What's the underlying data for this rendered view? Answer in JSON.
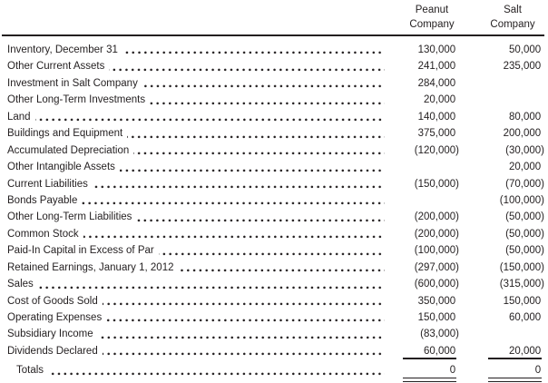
{
  "ink_color": "#231f20",
  "header": {
    "peanut": {
      "line1": "Peanut",
      "line2": "Company"
    },
    "salt": {
      "line1": "Salt",
      "line2": "Company"
    }
  },
  "rows": [
    {
      "label": "Inventory, December 31",
      "peanut": "130,000",
      "salt": "50,000"
    },
    {
      "label": "Other Current Assets",
      "peanut": "241,000",
      "salt": "235,000"
    },
    {
      "label": "Investment in Salt Company",
      "peanut": "284,000",
      "salt": ""
    },
    {
      "label": "Other Long-Term Investments",
      "peanut": "20,000",
      "salt": ""
    },
    {
      "label": "Land",
      "peanut": "140,000",
      "salt": "80,000"
    },
    {
      "label": "Buildings and Equipment",
      "peanut": "375,000",
      "salt": "200,000"
    },
    {
      "label": "Accumulated Depreciation",
      "peanut": "(120,000)",
      "salt": "(30,000)"
    },
    {
      "label": "Other Intangible Assets",
      "peanut": "",
      "salt": "20,000"
    },
    {
      "label": "Current Liabilities",
      "peanut": "(150,000)",
      "salt": "(70,000)"
    },
    {
      "label": "Bonds Payable",
      "peanut": "",
      "salt": "(100,000)"
    },
    {
      "label": "Other Long-Term Liabilities",
      "peanut": "(200,000)",
      "salt": "(50,000)"
    },
    {
      "label": "Common Stock",
      "peanut": "(200,000)",
      "salt": "(50,000)"
    },
    {
      "label": "Paid-In Capital in Excess of Par",
      "peanut": "(100,000)",
      "salt": "(50,000)"
    },
    {
      "label": "Retained Earnings, January 1, 2012",
      "peanut": "(297,000)",
      "salt": "(150,000)"
    },
    {
      "label": "Sales",
      "peanut": "(600,000)",
      "salt": "(315,000)"
    },
    {
      "label": "Cost of Goods Sold",
      "peanut": "350,000",
      "salt": "150,000"
    },
    {
      "label": "Operating Expenses",
      "peanut": "150,000",
      "salt": "60,000"
    },
    {
      "label": "Subsidiary Income",
      "peanut": "(83,000)",
      "salt": ""
    },
    {
      "label": "Dividends Declared",
      "peanut": "60,000",
      "salt": "20,000",
      "underline": "single"
    },
    {
      "label": "Totals",
      "peanut": "0",
      "salt": "0",
      "indent": true,
      "underline": "double"
    }
  ]
}
